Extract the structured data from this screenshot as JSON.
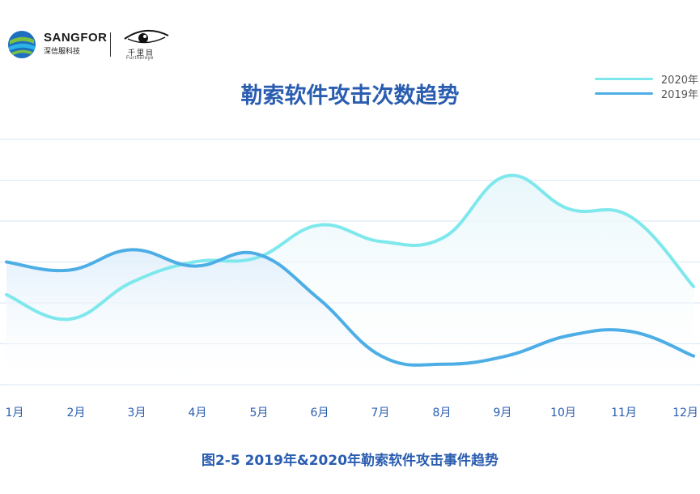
{
  "logo": {
    "brand": "SANGFOR",
    "brand_sub": "深信服科技",
    "eye_text": "千里目",
    "eye_sub": "Furthereye"
  },
  "colors": {
    "series_2020": "#7ee8ec",
    "series_2019": "#4daee6",
    "title": "#2a5db0",
    "grid": "#d9e6f3"
  },
  "chart_data": {
    "type": "line",
    "title": "勒索软件攻击次数趋势",
    "caption": "图2-5 2019年&2020年勒索软件攻击事件趋势",
    "categories": [
      "1月",
      "2月",
      "3月",
      "4月",
      "5月",
      "6月",
      "7月",
      "8月",
      "9月",
      "10月",
      "11月",
      "12月"
    ],
    "series": [
      {
        "name": "2020年",
        "values": [
          2.2,
          1.6,
          2.5,
          3.0,
          3.1,
          3.9,
          3.5,
          3.6,
          5.1,
          4.3,
          4.1,
          2.4
        ]
      },
      {
        "name": "2019年",
        "values": [
          3.0,
          2.8,
          3.3,
          2.9,
          3.2,
          2.1,
          0.7,
          0.5,
          0.7,
          1.2,
          1.3,
          0.7
        ]
      }
    ],
    "ylim": [
      0,
      6
    ],
    "grid": true,
    "legend_position": "top-right"
  }
}
